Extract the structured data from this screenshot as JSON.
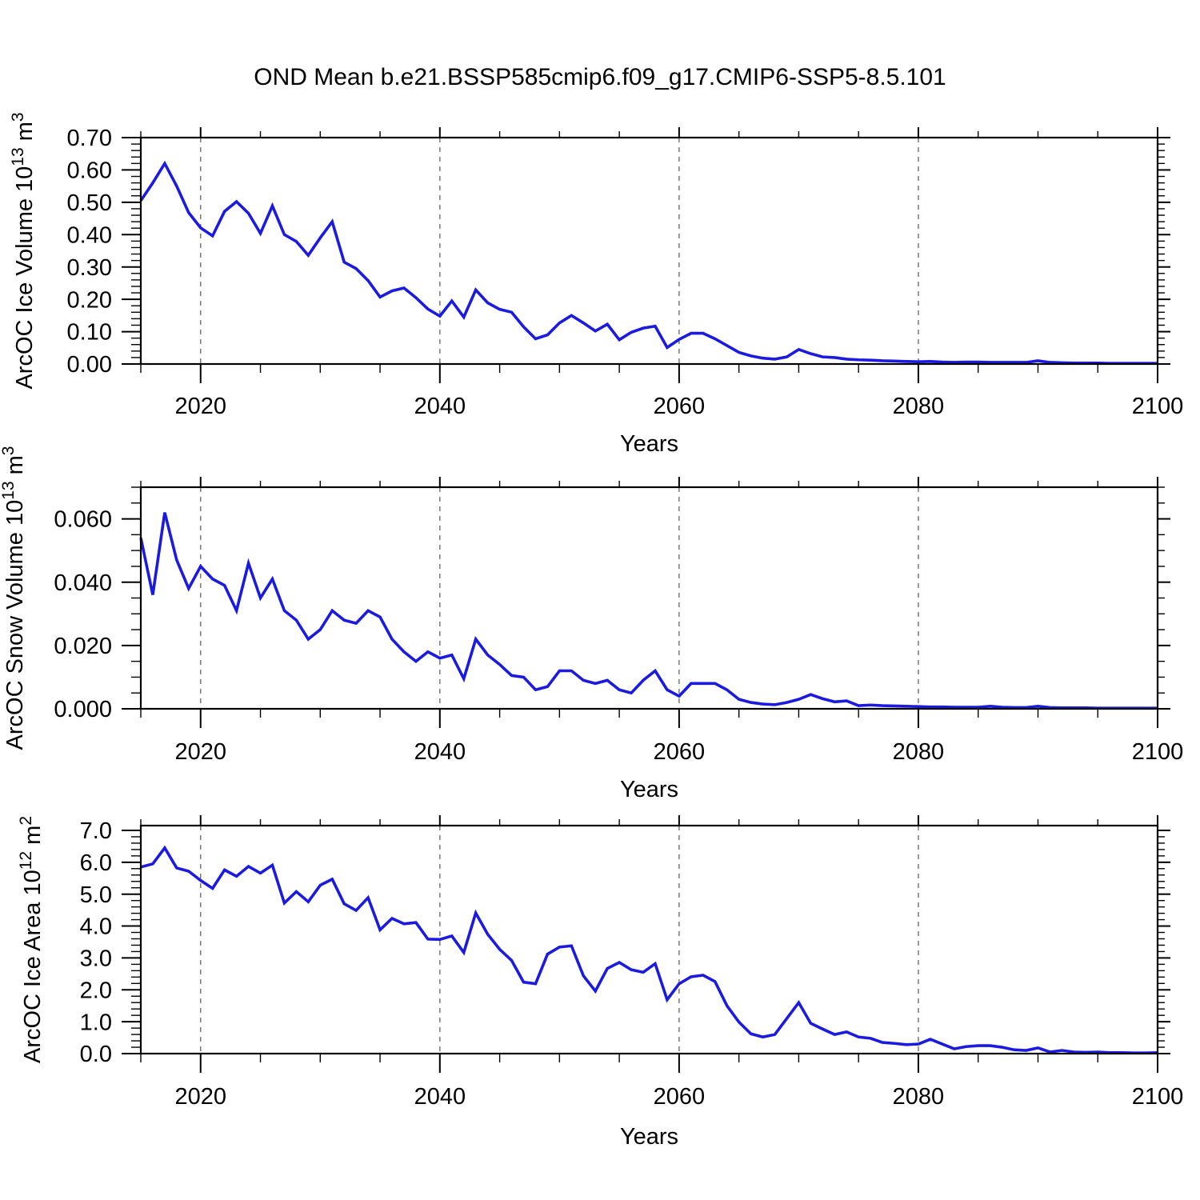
{
  "title": "OND Mean b.e21.BSSP585cmip6.f09_g17.CMIP6-SSP5-8.5.101",
  "colors": {
    "background": "#ffffff",
    "line": "#1a1ae0",
    "axis": "#000000",
    "grid": "#787878"
  },
  "chart_data": [
    {
      "type": "line",
      "ylabel_segments": [
        {
          "t": "ArcOC Ice Volume 10"
        },
        {
          "t": "13",
          "sup": true
        },
        {
          "t": " m"
        },
        {
          "t": "3",
          "sup": true
        }
      ],
      "xlabel": "Years",
      "x_start": 2015,
      "x_step": 1,
      "xlim": [
        2015,
        2100
      ],
      "ylim": [
        0,
        0.7
      ],
      "ytick_start": 0,
      "ytick_step": 0.1,
      "ytick_count": 8,
      "ytick_decimals": 2,
      "yminor_step": 0.02,
      "xticks_major": [
        2020,
        2040,
        2060,
        2080,
        2100
      ],
      "xminor_step": 5,
      "x_gridlines": [
        2020,
        2040,
        2060,
        2080
      ],
      "grid": true,
      "legend": "none",
      "values": [
        0.505,
        0.56,
        0.62,
        0.55,
        0.468,
        0.421,
        0.396,
        0.472,
        0.502,
        0.466,
        0.404,
        0.489,
        0.4,
        0.379,
        0.336,
        0.39,
        0.44,
        0.315,
        0.295,
        0.258,
        0.207,
        0.226,
        0.235,
        0.205,
        0.17,
        0.148,
        0.195,
        0.145,
        0.229,
        0.189,
        0.169,
        0.16,
        0.115,
        0.078,
        0.09,
        0.127,
        0.15,
        0.127,
        0.102,
        0.123,
        0.075,
        0.098,
        0.111,
        0.117,
        0.051,
        0.076,
        0.095,
        0.095,
        0.078,
        0.057,
        0.036,
        0.025,
        0.018,
        0.015,
        0.022,
        0.045,
        0.032,
        0.022,
        0.02,
        0.015,
        0.013,
        0.012,
        0.01,
        0.009,
        0.008,
        0.007,
        0.008,
        0.006,
        0.005,
        0.006,
        0.006,
        0.005,
        0.005,
        0.005,
        0.005,
        0.01,
        0.005,
        0.004,
        0.003,
        0.003,
        0.003,
        0.002,
        0.002,
        0.002,
        0.002,
        0.002
      ]
    },
    {
      "type": "line",
      "ylabel_segments": [
        {
          "t": "ArcOC Snow Volume 10"
        },
        {
          "t": "13",
          "sup": true
        },
        {
          "t": " m"
        },
        {
          "t": "3",
          "sup": true
        }
      ],
      "xlabel": "Years",
      "x_start": 2015,
      "x_step": 1,
      "xlim": [
        2015,
        2100
      ],
      "ylim": [
        0,
        0.07
      ],
      "ytick_start": 0,
      "ytick_step": 0.02,
      "ytick_count": 4,
      "ytick_decimals": 3,
      "yminor_step": 0.005,
      "xticks_major": [
        2020,
        2040,
        2060,
        2080,
        2100
      ],
      "xminor_step": 5,
      "x_gridlines": [
        2020,
        2040,
        2060,
        2080
      ],
      "grid": true,
      "legend": "none",
      "values": [
        0.054,
        0.036,
        0.062,
        0.047,
        0.038,
        0.045,
        0.041,
        0.039,
        0.031,
        0.046,
        0.035,
        0.041,
        0.031,
        0.028,
        0.022,
        0.025,
        0.031,
        0.028,
        0.027,
        0.031,
        0.029,
        0.022,
        0.018,
        0.015,
        0.018,
        0.016,
        0.017,
        0.0095,
        0.022,
        0.017,
        0.014,
        0.0105,
        0.01,
        0.006,
        0.007,
        0.012,
        0.012,
        0.009,
        0.008,
        0.009,
        0.006,
        0.005,
        0.009,
        0.012,
        0.006,
        0.004,
        0.008,
        0.008,
        0.008,
        0.006,
        0.003,
        0.002,
        0.0015,
        0.0013,
        0.002,
        0.003,
        0.0045,
        0.0032,
        0.0022,
        0.0025,
        0.001,
        0.0012,
        0.001,
        0.0009,
        0.0008,
        0.0007,
        0.0006,
        0.0006,
        0.0005,
        0.0005,
        0.0005,
        0.0008,
        0.0005,
        0.0004,
        0.0004,
        0.0008,
        0.0004,
        0.0003,
        0.0003,
        0.0003,
        0.0002,
        0.0002,
        0.0002,
        0.0002,
        0.0002,
        0.0002
      ]
    },
    {
      "type": "line",
      "ylabel_segments": [
        {
          "t": "ArcOC Ice Area 10"
        },
        {
          "t": "12",
          "sup": true
        },
        {
          "t": " m"
        },
        {
          "t": "2",
          "sup": true
        }
      ],
      "xlabel": "Years",
      "x_start": 2015,
      "x_step": 1,
      "xlim": [
        2015,
        2100
      ],
      "ylim": [
        0,
        7.15
      ],
      "ytick_start": 0,
      "ytick_step": 1.0,
      "ytick_count": 8,
      "ytick_decimals": 1,
      "yminor_step": 0.2,
      "xticks_major": [
        2020,
        2040,
        2060,
        2080,
        2100
      ],
      "xminor_step": 5,
      "x_gridlines": [
        2020,
        2040,
        2060,
        2080
      ],
      "grid": true,
      "legend": "none",
      "values": [
        5.85,
        5.95,
        6.45,
        5.82,
        5.72,
        5.43,
        5.18,
        5.76,
        5.56,
        5.87,
        5.66,
        5.91,
        4.72,
        5.08,
        4.76,
        5.28,
        5.47,
        4.7,
        4.49,
        4.89,
        3.88,
        4.24,
        4.07,
        4.11,
        3.59,
        3.58,
        3.69,
        3.17,
        4.41,
        3.74,
        3.27,
        2.92,
        2.24,
        2.19,
        3.12,
        3.34,
        3.38,
        2.44,
        1.96,
        2.67,
        2.86,
        2.63,
        2.55,
        2.82,
        1.69,
        2.19,
        2.41,
        2.46,
        2.26,
        1.5,
        0.99,
        0.62,
        0.52,
        0.6,
        1.1,
        1.6,
        0.95,
        0.77,
        0.6,
        0.68,
        0.52,
        0.48,
        0.35,
        0.32,
        0.28,
        0.3,
        0.45,
        0.3,
        0.15,
        0.22,
        0.25,
        0.25,
        0.2,
        0.12,
        0.1,
        0.18,
        0.05,
        0.1,
        0.05,
        0.04,
        0.05,
        0.03,
        0.03,
        0.02,
        0.02,
        0.03
      ]
    }
  ]
}
